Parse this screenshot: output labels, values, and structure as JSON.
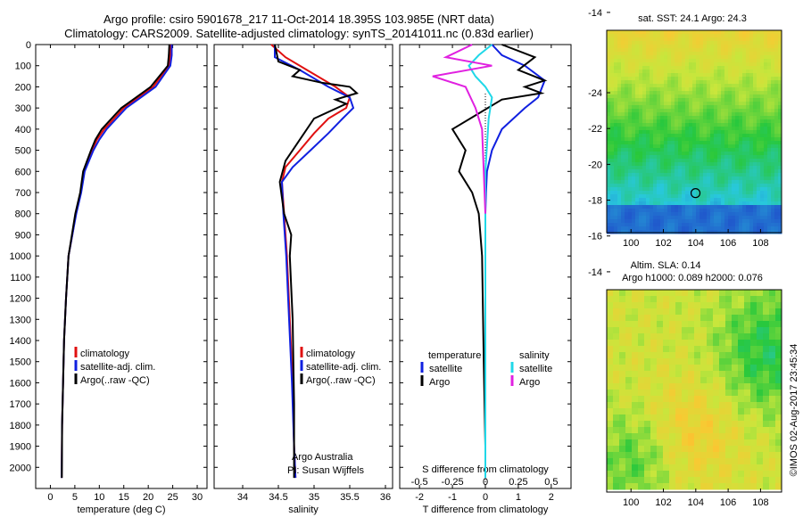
{
  "header": {
    "line1": "Argo profile: csiro 5901678_217 11-Oct-2014 18.395S 103.985E (NRT data)",
    "line2": "Climatology: CARS2009. Satellite-adjusted climatology: synTS_20141011.nc (0.83d earlier)"
  },
  "side_stamp": "©IMOS 02-Aug-2017 23:45:34",
  "maps": {
    "sst_title": "sat. SST: 24.1  Argo: 24.3",
    "sla_title1": "Altim. SLA: 0.14",
    "sla_title2": "Argo h1000: 0.089 h2000: 0.076",
    "ylabels": [
      "-14",
      "-16",
      "-18",
      "-20",
      "-22",
      "-24"
    ],
    "xlabels": [
      "100",
      "102",
      "104",
      "106",
      "108"
    ]
  },
  "colors": {
    "climatology": "#e01010",
    "satellite_temp": "#1020e0",
    "argo": "#000000",
    "satellite_sal": "#20d8e8",
    "argo_sal_diff": "#e020e0"
  },
  "chart_data": [
    {
      "type": "line",
      "xlabel": "temperature (deg C)",
      "ylabel": "",
      "xlim": [
        -3,
        32
      ],
      "ylim": [
        2100,
        0
      ],
      "xticks": [
        "0",
        "5",
        "10",
        "15",
        "20",
        "25",
        "30"
      ],
      "yticks": [
        "0",
        "100",
        "200",
        "300",
        "400",
        "500",
        "600",
        "700",
        "800",
        "900",
        "1000",
        "1100",
        "1200",
        "1300",
        "1400",
        "1500",
        "1600",
        "1700",
        "1800",
        "1900",
        "2000"
      ],
      "legend": [
        "climatology",
        "satellite-adj. clim.",
        "Argo(..raw -QC)"
      ],
      "series": [
        {
          "name": "climatology",
          "color": "#e01010",
          "x": [
            24.5,
            24.5,
            24.2,
            21,
            18,
            15,
            13,
            11,
            9.5,
            8.5,
            7.7,
            6.8,
            6.2,
            5.2,
            4.5,
            3.7,
            3.2,
            2.8,
            2.6,
            2.4,
            2.3
          ],
          "y": [
            0,
            50,
            100,
            200,
            250,
            300,
            350,
            400,
            450,
            500,
            550,
            600,
            700,
            800,
            900,
            1000,
            1200,
            1400,
            1600,
            1800,
            2050
          ]
        },
        {
          "name": "satellite-adj. clim.",
          "color": "#1020e0",
          "x": [
            24.8,
            24.8,
            24.5,
            21.5,
            18.5,
            15.5,
            13.5,
            11.5,
            10,
            8.8,
            7.9,
            7,
            6.3,
            5.3,
            4.5,
            3.7,
            3.2,
            2.8,
            2.6,
            2.4,
            2.3
          ],
          "y": [
            0,
            50,
            100,
            200,
            250,
            300,
            350,
            400,
            450,
            500,
            550,
            600,
            700,
            800,
            900,
            1000,
            1200,
            1400,
            1600,
            1800,
            2050
          ]
        },
        {
          "name": "Argo(..raw -QC)",
          "color": "#000000",
          "x": [
            24.3,
            24.2,
            24,
            20.5,
            17.5,
            14.5,
            12.5,
            10.5,
            9.2,
            8.3,
            7.5,
            6.7,
            6.1,
            5.1,
            4.4,
            3.7,
            3.2,
            2.8,
            2.6,
            2.4,
            2.35
          ],
          "y": [
            0,
            50,
            100,
            200,
            250,
            300,
            350,
            400,
            450,
            500,
            550,
            600,
            700,
            800,
            900,
            1000,
            1200,
            1400,
            1600,
            1800,
            2050
          ]
        }
      ]
    },
    {
      "type": "line",
      "xlabel": "salinity",
      "ylabel": "",
      "xlim": [
        33.6,
        36.1
      ],
      "ylim": [
        2100,
        0
      ],
      "xticks": [
        "34",
        "34.5",
        "35",
        "35.5",
        "36"
      ],
      "legend": [
        "climatology",
        "satellite-adj. clim.",
        "Argo(..raw -QC)"
      ],
      "annotations": [
        "Argo Australia",
        "PI: Susan Wijffels"
      ],
      "series": [
        {
          "name": "climatology",
          "color": "#e01010",
          "x": [
            34.4,
            34.6,
            34.9,
            35.3,
            35.5,
            35.45,
            35.2,
            35.0,
            34.8,
            34.6,
            34.55,
            34.58,
            34.62,
            34.66,
            34.7,
            34.72,
            34.74
          ],
          "y": [
            0,
            60,
            120,
            200,
            250,
            300,
            350,
            420,
            500,
            580,
            650,
            800,
            1000,
            1300,
            1600,
            1900,
            2050
          ]
        },
        {
          "name": "satellite-adj. clim.",
          "color": "#1020e0",
          "x": [
            34.45,
            34.45,
            34.8,
            35.2,
            35.5,
            35.55,
            35.4,
            35.2,
            34.95,
            34.7,
            34.55,
            34.57,
            34.61,
            34.65,
            34.69,
            34.72,
            34.74
          ],
          "y": [
            0,
            60,
            120,
            200,
            250,
            300,
            350,
            420,
            500,
            580,
            650,
            800,
            1000,
            1300,
            1600,
            1900,
            2050
          ]
        },
        {
          "name": "Argo(..raw -QC)",
          "color": "#000000",
          "x": [
            34.45,
            34.5,
            34.8,
            34.7,
            35.1,
            35.5,
            35.6,
            35.3,
            35.45,
            35.0,
            34.8,
            34.6,
            34.52,
            34.58,
            34.68,
            34.66,
            34.7,
            34.72,
            34.72
          ],
          "y": [
            0,
            80,
            120,
            150,
            180,
            200,
            230,
            260,
            280,
            350,
            450,
            550,
            650,
            800,
            900,
            1000,
            1300,
            1700,
            2050
          ]
        }
      ]
    },
    {
      "type": "line",
      "xlabel": "T difference from climatology",
      "xlabel2": "S difference from climatology",
      "ylabel": "",
      "xlim": [
        -2.6,
        2.6
      ],
      "ylim": [
        2100,
        0
      ],
      "xticks": [
        "-2",
        "-1",
        "0",
        "1",
        "2"
      ],
      "xticks_s": [
        "-0.5",
        "-0.25",
        "0",
        "0.25",
        "0.5"
      ],
      "legend_temp_title": "temperature",
      "legend_sal_title": "salinity",
      "legend": [
        "satellite",
        "Argo",
        "satellite",
        "Argo"
      ],
      "series": [
        {
          "name": "satellite",
          "color": "#1020e0",
          "x": [
            0.2,
            0.5,
            1.2,
            1.8,
            1.6,
            1.2,
            0.5,
            0.2,
            0.05,
            0.02,
            0.0,
            0.0,
            0.0,
            0.0
          ],
          "y": [
            0,
            50,
            100,
            170,
            250,
            300,
            400,
            500,
            600,
            700,
            800,
            1000,
            1500,
            2050
          ]
        },
        {
          "name": "Argo",
          "color": "#000000",
          "x": [
            0.5,
            1.5,
            1.0,
            1.8,
            1.2,
            1.7,
            0.5,
            -1.0,
            -0.6,
            -0.8,
            -0.4,
            -0.2,
            -0.1,
            -0.05,
            0.0
          ],
          "y": [
            0,
            60,
            120,
            170,
            200,
            230,
            260,
            400,
            500,
            600,
            700,
            800,
            1000,
            1500,
            1900
          ]
        },
        {
          "name": "satellite",
          "color": "#20d8e8",
          "x": [
            0.2,
            -0.2,
            -0.5,
            -0.3,
            0.0,
            0.2,
            0.1,
            0.0,
            0.0,
            0.0
          ],
          "y": [
            0,
            50,
            100,
            150,
            200,
            250,
            350,
            600,
            1200,
            2050
          ]
        },
        {
          "name": "Argo",
          "color": "#e020e0",
          "x": [
            -0.4,
            -1.2,
            0.2,
            -1.6,
            -0.6,
            -0.3,
            -0.1,
            -0.05,
            0.0
          ],
          "y": [
            0,
            60,
            100,
            150,
            200,
            300,
            400,
            600,
            800
          ]
        }
      ]
    }
  ]
}
